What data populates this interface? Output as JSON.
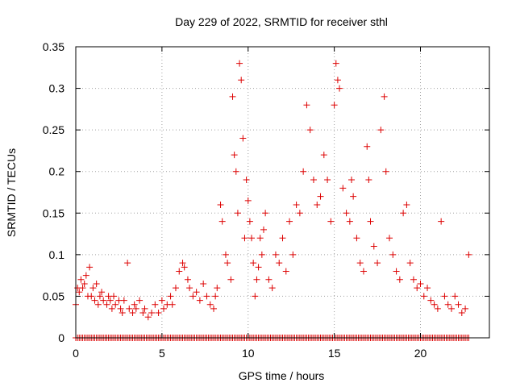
{
  "chart_data": {
    "type": "scatter",
    "title": "Day 229 of 2022, SRMTID for receiver sthl",
    "xlabel": "GPS time / hours",
    "ylabel": "SRMTID / TECUs",
    "xlim": [
      0,
      24
    ],
    "ylim": [
      0,
      0.35
    ],
    "x_ticks": [
      {
        "value": 0,
        "label": "0"
      },
      {
        "value": 5,
        "label": "5"
      },
      {
        "value": 10,
        "label": "10"
      },
      {
        "value": 15,
        "label": "15"
      },
      {
        "value": 20,
        "label": "20"
      }
    ],
    "y_ticks": [
      {
        "value": 0,
        "label": "0"
      },
      {
        "value": 0.05,
        "label": "0.05"
      },
      {
        "value": 0.1,
        "label": "0.1"
      },
      {
        "value": 0.15,
        "label": "0.15"
      },
      {
        "value": 0.2,
        "label": "0.2"
      },
      {
        "value": 0.25,
        "label": "0.25"
      },
      {
        "value": 0.3,
        "label": "0.3"
      },
      {
        "value": 0.35,
        "label": "0.35"
      }
    ],
    "grid": true,
    "marker": "plus",
    "color": "#dd0000",
    "series": [
      {
        "x": [
          0.0,
          0.1,
          0.2,
          0.3,
          0.4,
          0.5,
          0.6,
          0.7,
          0.8,
          0.9,
          1.0,
          1.1,
          1.2,
          1.3,
          1.4,
          1.5,
          1.6,
          1.8,
          1.9,
          2.0,
          2.1,
          2.2,
          2.3,
          2.5,
          2.6,
          2.7,
          2.8,
          3.0,
          3.1,
          3.3,
          3.4,
          3.5,
          3.7,
          3.9,
          4.0,
          4.2,
          4.4,
          4.6,
          4.8,
          5.0,
          5.1,
          5.3,
          5.5,
          5.6,
          5.8,
          6.0,
          6.2,
          6.3,
          6.5,
          6.6,
          6.8,
          7.0,
          7.2,
          7.4,
          7.6,
          7.8,
          8.0,
          8.1,
          8.2,
          8.4,
          8.5,
          8.7,
          8.8,
          9.0,
          9.1,
          9.2,
          9.3,
          9.4,
          9.5,
          9.6,
          9.7,
          9.8,
          9.9,
          10.0,
          10.1,
          10.2,
          10.3,
          10.4,
          10.5,
          10.6,
          10.7,
          10.8,
          10.9,
          11.0,
          11.2,
          11.4,
          11.6,
          11.8,
          12.0,
          12.2,
          12.4,
          12.6,
          12.8,
          13.0,
          13.2,
          13.4,
          13.6,
          13.8,
          14.0,
          14.2,
          14.4,
          14.6,
          14.8,
          15.0,
          15.1,
          15.2,
          15.3,
          15.5,
          15.7,
          15.9,
          16.0,
          16.1,
          16.3,
          16.5,
          16.7,
          16.9,
          17.0,
          17.1,
          17.3,
          17.5,
          17.7,
          17.9,
          18.0,
          18.2,
          18.4,
          18.6,
          18.8,
          19.0,
          19.2,
          19.4,
          19.6,
          19.8,
          20.0,
          20.2,
          20.4,
          20.6,
          20.8,
          21.0,
          21.2,
          21.4,
          21.6,
          21.8,
          22.0,
          22.2,
          22.4,
          22.6,
          22.8
        ],
        "y": [
          0.04,
          0.06,
          0.055,
          0.07,
          0.06,
          0.065,
          0.075,
          0.05,
          0.085,
          0.05,
          0.06,
          0.045,
          0.065,
          0.04,
          0.05,
          0.055,
          0.045,
          0.04,
          0.05,
          0.045,
          0.035,
          0.05,
          0.04,
          0.045,
          0.035,
          0.03,
          0.045,
          0.09,
          0.035,
          0.03,
          0.04,
          0.035,
          0.045,
          0.03,
          0.035,
          0.025,
          0.03,
          0.04,
          0.03,
          0.045,
          0.035,
          0.04,
          0.05,
          0.04,
          0.06,
          0.08,
          0.09,
          0.085,
          0.07,
          0.06,
          0.05,
          0.055,
          0.045,
          0.065,
          0.05,
          0.04,
          0.035,
          0.05,
          0.06,
          0.16,
          0.14,
          0.1,
          0.09,
          0.07,
          0.29,
          0.22,
          0.2,
          0.15,
          0.33,
          0.31,
          0.24,
          0.12,
          0.19,
          0.165,
          0.14,
          0.12,
          0.09,
          0.05,
          0.07,
          0.085,
          0.12,
          0.1,
          0.13,
          0.15,
          0.07,
          0.06,
          0.1,
          0.09,
          0.12,
          0.08,
          0.14,
          0.1,
          0.16,
          0.15,
          0.2,
          0.28,
          0.25,
          0.19,
          0.16,
          0.17,
          0.22,
          0.19,
          0.14,
          0.28,
          0.33,
          0.31,
          0.3,
          0.18,
          0.15,
          0.14,
          0.19,
          0.17,
          0.12,
          0.09,
          0.08,
          0.23,
          0.19,
          0.14,
          0.11,
          0.09,
          0.25,
          0.29,
          0.2,
          0.12,
          0.1,
          0.08,
          0.07,
          0.15,
          0.16,
          0.09,
          0.07,
          0.06,
          0.065,
          0.05,
          0.06,
          0.045,
          0.04,
          0.035,
          0.14,
          0.05,
          0.04,
          0.035,
          0.05,
          0.04,
          0.03,
          0.035,
          0.1
        ]
      }
    ],
    "baseline_points": {
      "y": 0,
      "x_start": 0.0,
      "x_end": 22.8,
      "x_step": 0.1
    }
  }
}
